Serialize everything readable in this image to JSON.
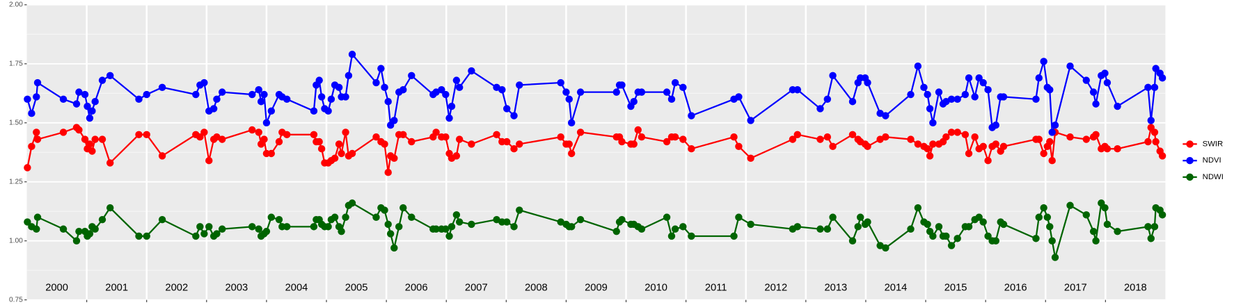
{
  "chart_data": {
    "type": "line",
    "x": [
      2000.01,
      2000.08,
      2000.16,
      2000.18,
      2000.61,
      2000.83,
      2000.87,
      2000.97,
      2001.01,
      2001.05,
      2001.09,
      2001.14,
      2001.26,
      2001.39,
      2001.87,
      2002.0,
      2002.26,
      2002.82,
      2002.89,
      2002.96,
      2003.04,
      2003.12,
      2003.17,
      2003.26,
      2003.76,
      2003.87,
      2003.91,
      2003.96,
      2004.0,
      2004.08,
      2004.21,
      2004.26,
      2004.34,
      2004.79,
      2004.83,
      2004.88,
      2004.92,
      2004.97,
      2005.03,
      2005.08,
      2005.14,
      2005.21,
      2005.25,
      2005.32,
      2005.37,
      2005.43,
      2005.83,
      2005.91,
      2005.97,
      2006.03,
      2006.07,
      2006.13,
      2006.21,
      2006.28,
      2006.42,
      2006.78,
      2006.83,
      2006.92,
      2006.99,
      2007.05,
      2007.09,
      2007.17,
      2007.22,
      2007.42,
      2007.84,
      2007.93,
      2008.01,
      2008.13,
      2008.22,
      2008.91,
      2009.0,
      2009.05,
      2009.09,
      2009.24,
      2009.84,
      2009.89,
      2009.93,
      2010.08,
      2010.13,
      2010.2,
      2010.26,
      2010.68,
      2010.76,
      2010.82,
      2010.95,
      2011.09,
      2011.8,
      2011.88,
      2012.08,
      2012.78,
      2012.86,
      2013.24,
      2013.36,
      2013.45,
      2013.78,
      2013.87,
      2013.91,
      2013.99,
      2014.03,
      2014.24,
      2014.33,
      2014.75,
      2014.87,
      2014.97,
      2015.03,
      2015.07,
      2015.12,
      2015.22,
      2015.29,
      2015.34,
      2015.43,
      2015.53,
      2015.66,
      2015.72,
      2015.82,
      2015.89,
      2015.96,
      2016.04,
      2016.11,
      2016.17,
      2016.25,
      2016.3,
      2016.84,
      2016.89,
      2016.97,
      2017.03,
      2017.07,
      2017.11,
      2017.16,
      2017.41,
      2017.68,
      2017.8,
      2017.84,
      2017.93,
      2017.99,
      2018.03,
      2018.2,
      2018.71,
      2018.76,
      2018.82,
      2018.84,
      2018.91,
      2018.95
    ],
    "series": [
      {
        "name": "SWIR",
        "color": "#ff0000",
        "values": [
          1.31,
          1.4,
          1.46,
          1.43,
          1.46,
          1.48,
          1.47,
          1.43,
          1.39,
          1.41,
          1.38,
          1.43,
          1.43,
          1.33,
          1.45,
          1.45,
          1.36,
          1.45,
          1.44,
          1.46,
          1.34,
          1.43,
          1.44,
          1.43,
          1.47,
          1.46,
          1.41,
          1.43,
          1.37,
          1.37,
          1.42,
          1.46,
          1.45,
          1.45,
          1.42,
          1.42,
          1.39,
          1.33,
          1.33,
          1.34,
          1.35,
          1.41,
          1.37,
          1.46,
          1.36,
          1.37,
          1.44,
          1.42,
          1.41,
          1.29,
          1.36,
          1.35,
          1.45,
          1.45,
          1.42,
          1.44,
          1.46,
          1.44,
          1.44,
          1.37,
          1.35,
          1.36,
          1.43,
          1.41,
          1.45,
          1.42,
          1.42,
          1.39,
          1.41,
          1.44,
          1.41,
          1.41,
          1.37,
          1.46,
          1.44,
          1.44,
          1.42,
          1.41,
          1.41,
          1.47,
          1.44,
          1.42,
          1.44,
          1.44,
          1.43,
          1.39,
          1.44,
          1.4,
          1.35,
          1.43,
          1.45,
          1.43,
          1.44,
          1.4,
          1.45,
          1.43,
          1.42,
          1.41,
          1.4,
          1.43,
          1.44,
          1.43,
          1.41,
          1.4,
          1.39,
          1.36,
          1.41,
          1.41,
          1.42,
          1.44,
          1.46,
          1.46,
          1.45,
          1.37,
          1.44,
          1.39,
          1.4,
          1.34,
          1.4,
          1.41,
          1.38,
          1.4,
          1.43,
          1.43,
          1.37,
          1.4,
          1.42,
          1.34,
          1.46,
          1.44,
          1.43,
          1.44,
          1.45,
          1.39,
          1.4,
          1.39,
          1.39,
          1.42,
          1.48,
          1.46,
          1.42,
          1.38,
          1.36
        ]
      },
      {
        "name": "NDVI",
        "color": "#0000ff",
        "values": [
          1.6,
          1.54,
          1.61,
          1.67,
          1.6,
          1.58,
          1.63,
          1.62,
          1.57,
          1.52,
          1.55,
          1.59,
          1.68,
          1.7,
          1.6,
          1.62,
          1.65,
          1.62,
          1.66,
          1.67,
          1.55,
          1.56,
          1.6,
          1.63,
          1.62,
          1.64,
          1.59,
          1.62,
          1.5,
          1.55,
          1.62,
          1.61,
          1.6,
          1.55,
          1.66,
          1.68,
          1.61,
          1.56,
          1.55,
          1.6,
          1.66,
          1.65,
          1.61,
          1.61,
          1.7,
          1.79,
          1.67,
          1.73,
          1.65,
          1.59,
          1.49,
          1.51,
          1.63,
          1.64,
          1.7,
          1.62,
          1.63,
          1.64,
          1.62,
          1.52,
          1.57,
          1.68,
          1.65,
          1.72,
          1.65,
          1.64,
          1.56,
          1.53,
          1.66,
          1.67,
          1.63,
          1.6,
          1.5,
          1.63,
          1.63,
          1.66,
          1.66,
          1.57,
          1.59,
          1.63,
          1.63,
          1.63,
          1.6,
          1.67,
          1.65,
          1.53,
          1.6,
          1.61,
          1.51,
          1.64,
          1.64,
          1.56,
          1.6,
          1.7,
          1.59,
          1.67,
          1.69,
          1.69,
          1.67,
          1.54,
          1.53,
          1.62,
          1.74,
          1.65,
          1.62,
          1.56,
          1.5,
          1.63,
          1.58,
          1.59,
          1.6,
          1.6,
          1.62,
          1.69,
          1.61,
          1.69,
          1.67,
          1.64,
          1.48,
          1.49,
          1.61,
          1.61,
          1.6,
          1.69,
          1.76,
          1.65,
          1.64,
          1.46,
          1.49,
          1.74,
          1.68,
          1.63,
          1.58,
          1.7,
          1.71,
          1.67,
          1.57,
          1.65,
          1.51,
          1.65,
          1.73,
          1.71,
          1.69
        ]
      },
      {
        "name": "NDWI",
        "color": "#006400",
        "values": [
          1.08,
          1.06,
          1.05,
          1.1,
          1.05,
          1.0,
          1.04,
          1.04,
          1.02,
          1.03,
          1.06,
          1.05,
          1.09,
          1.14,
          1.02,
          1.02,
          1.09,
          1.02,
          1.06,
          1.03,
          1.06,
          1.02,
          1.03,
          1.05,
          1.06,
          1.05,
          1.02,
          1.03,
          1.04,
          1.1,
          1.09,
          1.06,
          1.06,
          1.06,
          1.09,
          1.09,
          1.07,
          1.06,
          1.06,
          1.09,
          1.1,
          1.06,
          1.04,
          1.1,
          1.15,
          1.16,
          1.1,
          1.14,
          1.13,
          1.07,
          1.03,
          0.97,
          1.06,
          1.14,
          1.1,
          1.05,
          1.05,
          1.05,
          1.05,
          1.02,
          1.06,
          1.11,
          1.08,
          1.07,
          1.09,
          1.08,
          1.08,
          1.06,
          1.13,
          1.08,
          1.07,
          1.06,
          1.06,
          1.09,
          1.04,
          1.08,
          1.09,
          1.07,
          1.07,
          1.06,
          1.05,
          1.1,
          1.02,
          1.05,
          1.06,
          1.02,
          1.02,
          1.1,
          1.07,
          1.05,
          1.06,
          1.05,
          1.05,
          1.1,
          1.0,
          1.06,
          1.1,
          1.07,
          1.08,
          0.98,
          0.97,
          1.05,
          1.14,
          1.08,
          1.07,
          1.04,
          1.02,
          1.06,
          1.02,
          1.02,
          0.98,
          1.01,
          1.06,
          1.06,
          1.09,
          1.1,
          1.08,
          1.02,
          1.0,
          1.0,
          1.08,
          1.07,
          1.01,
          1.1,
          1.14,
          1.1,
          1.06,
          1.0,
          0.93,
          1.15,
          1.11,
          1.04,
          1.0,
          1.16,
          1.14,
          1.07,
          1.04,
          1.06,
          1.01,
          1.06,
          1.14,
          1.13,
          1.11
        ]
      }
    ],
    "xlim": [
      2000,
      2019
    ],
    "xticks": [
      2001,
      2002,
      2003,
      2004,
      2005,
      2006,
      2007,
      2008,
      2009,
      2010,
      2011,
      2012,
      2013,
      2014,
      2015,
      2016,
      2017,
      2018
    ],
    "year_labels": [
      {
        "x": 2000.5,
        "text": "2000"
      },
      {
        "x": 2001.5,
        "text": "2001"
      },
      {
        "x": 2002.5,
        "text": "2002"
      },
      {
        "x": 2003.5,
        "text": "2003"
      },
      {
        "x": 2004.5,
        "text": "2004"
      },
      {
        "x": 2005.5,
        "text": "2005"
      },
      {
        "x": 2006.5,
        "text": "2006"
      },
      {
        "x": 2007.5,
        "text": "2007"
      },
      {
        "x": 2008.5,
        "text": "2008"
      },
      {
        "x": 2009.5,
        "text": "2009"
      },
      {
        "x": 2010.5,
        "text": "2010"
      },
      {
        "x": 2011.5,
        "text": "2011"
      },
      {
        "x": 2012.5,
        "text": "2012"
      },
      {
        "x": 2013.5,
        "text": "2013"
      },
      {
        "x": 2014.5,
        "text": "2014"
      },
      {
        "x": 2015.5,
        "text": "2015"
      },
      {
        "x": 2016.5,
        "text": "2016"
      },
      {
        "x": 2017.5,
        "text": "2017"
      },
      {
        "x": 2018.5,
        "text": "2018"
      }
    ],
    "ylim": [
      0.75,
      2
    ],
    "yticks": [
      0.75,
      {
        "value": 1,
        "label": "1.00"
      },
      1.25,
      {
        "value": 1.5,
        "label": "1.50"
      },
      1.75,
      {
        "value": 2,
        "label": "2.00"
      }
    ],
    "grid": true,
    "legend": "right"
  }
}
